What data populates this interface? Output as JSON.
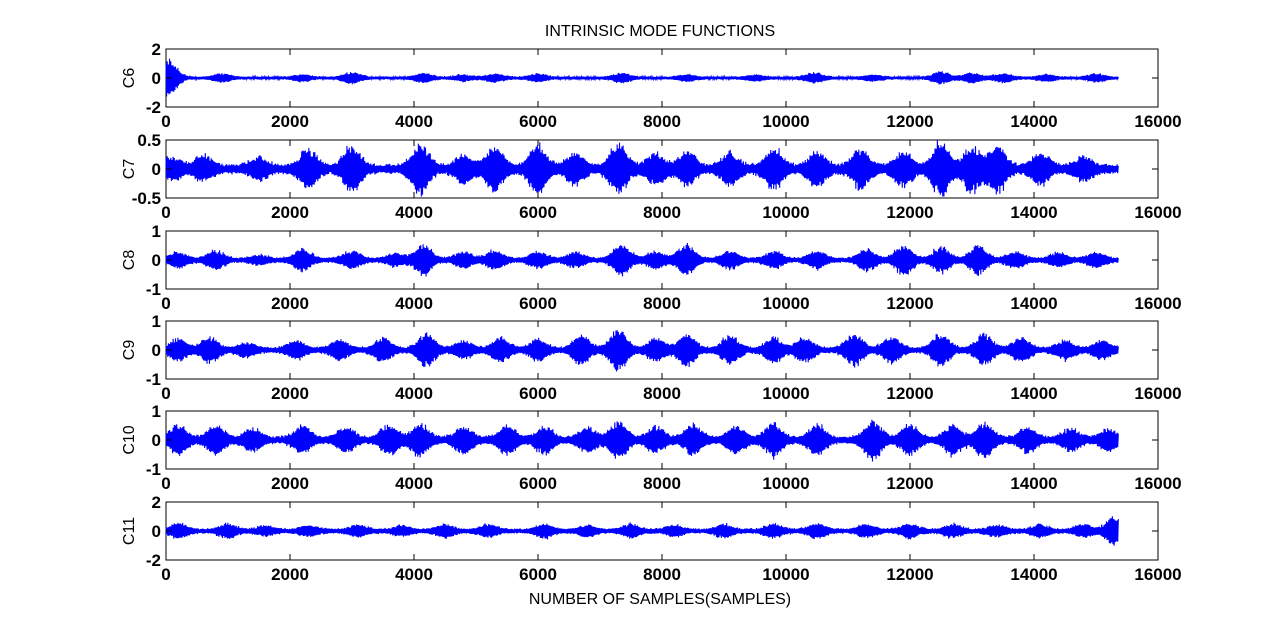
{
  "chart_data": {
    "type": "line",
    "title": "INTRINSIC MODE FUNCTIONS",
    "xlabel": "NUMBER OF SAMPLES(SAMPLES)",
    "xlim": [
      0,
      16000
    ],
    "x_ticks": [
      0,
      2000,
      4000,
      6000,
      8000,
      10000,
      12000,
      14000,
      16000
    ],
    "series_color": "#0000ff",
    "sample_count": 15360,
    "grid": false,
    "legend": "none",
    "subplots": [
      {
        "name": "C6",
        "ylabel": "C6",
        "ylim": [
          -2,
          2
        ],
        "y_ticks": [
          "2",
          "0",
          "-2"
        ],
        "baseline_amplitude": 0.12,
        "bursts": [
          {
            "x": 0,
            "amp": 0.9
          },
          {
            "x": 80,
            "amp": 0.55
          },
          {
            "x": 900,
            "amp": 0.28
          },
          {
            "x": 2200,
            "amp": 0.22
          },
          {
            "x": 3000,
            "amp": 0.38
          },
          {
            "x": 4150,
            "amp": 0.32
          },
          {
            "x": 4800,
            "amp": 0.2
          },
          {
            "x": 5300,
            "amp": 0.28
          },
          {
            "x": 6000,
            "amp": 0.25
          },
          {
            "x": 7350,
            "amp": 0.32
          },
          {
            "x": 8400,
            "amp": 0.22
          },
          {
            "x": 9500,
            "amp": 0.2
          },
          {
            "x": 10450,
            "amp": 0.35
          },
          {
            "x": 11400,
            "amp": 0.2
          },
          {
            "x": 12500,
            "amp": 0.42
          },
          {
            "x": 13000,
            "amp": 0.32
          },
          {
            "x": 13500,
            "amp": 0.3
          },
          {
            "x": 14200,
            "amp": 0.22
          },
          {
            "x": 15000,
            "amp": 0.28
          }
        ]
      },
      {
        "name": "C7",
        "ylabel": "C7",
        "ylim": [
          -0.5,
          0.5
        ],
        "y_ticks": [
          "0.5",
          "0",
          "-0.5"
        ],
        "baseline_amplitude": 0.1,
        "bursts": [
          {
            "x": 100,
            "amp": 0.18
          },
          {
            "x": 600,
            "amp": 0.2
          },
          {
            "x": 1500,
            "amp": 0.16
          },
          {
            "x": 2300,
            "amp": 0.32
          },
          {
            "x": 3000,
            "amp": 0.38
          },
          {
            "x": 4100,
            "amp": 0.45
          },
          {
            "x": 4800,
            "amp": 0.22
          },
          {
            "x": 5300,
            "amp": 0.38
          },
          {
            "x": 6000,
            "amp": 0.42
          },
          {
            "x": 6600,
            "amp": 0.25
          },
          {
            "x": 7300,
            "amp": 0.45
          },
          {
            "x": 7900,
            "amp": 0.25
          },
          {
            "x": 8400,
            "amp": 0.28
          },
          {
            "x": 9100,
            "amp": 0.25
          },
          {
            "x": 9800,
            "amp": 0.35
          },
          {
            "x": 10500,
            "amp": 0.3
          },
          {
            "x": 11200,
            "amp": 0.32
          },
          {
            "x": 11900,
            "amp": 0.3
          },
          {
            "x": 12500,
            "amp": 0.45
          },
          {
            "x": 13000,
            "amp": 0.38
          },
          {
            "x": 13400,
            "amp": 0.42
          },
          {
            "x": 14100,
            "amp": 0.25
          },
          {
            "x": 14800,
            "amp": 0.18
          }
        ]
      },
      {
        "name": "C8",
        "ylabel": "C8",
        "ylim": [
          -1,
          1
        ],
        "y_ticks": [
          "1",
          "0",
          "-1"
        ],
        "baseline_amplitude": 0.1,
        "bursts": [
          {
            "x": 200,
            "amp": 0.25
          },
          {
            "x": 800,
            "amp": 0.32
          },
          {
            "x": 1500,
            "amp": 0.15
          },
          {
            "x": 2200,
            "amp": 0.38
          },
          {
            "x": 3000,
            "amp": 0.3
          },
          {
            "x": 3700,
            "amp": 0.2
          },
          {
            "x": 4150,
            "amp": 0.55
          },
          {
            "x": 4800,
            "amp": 0.28
          },
          {
            "x": 5300,
            "amp": 0.32
          },
          {
            "x": 6000,
            "amp": 0.28
          },
          {
            "x": 6600,
            "amp": 0.25
          },
          {
            "x": 7350,
            "amp": 0.55
          },
          {
            "x": 7900,
            "amp": 0.3
          },
          {
            "x": 8400,
            "amp": 0.55
          },
          {
            "x": 9100,
            "amp": 0.3
          },
          {
            "x": 9800,
            "amp": 0.28
          },
          {
            "x": 10500,
            "amp": 0.3
          },
          {
            "x": 11300,
            "amp": 0.38
          },
          {
            "x": 11900,
            "amp": 0.55
          },
          {
            "x": 12500,
            "amp": 0.45
          },
          {
            "x": 13100,
            "amp": 0.5
          },
          {
            "x": 13700,
            "amp": 0.28
          },
          {
            "x": 14400,
            "amp": 0.22
          },
          {
            "x": 15000,
            "amp": 0.25
          }
        ]
      },
      {
        "name": "C9",
        "ylabel": "C9",
        "ylim": [
          -1,
          1
        ],
        "y_ticks": [
          "1",
          "0",
          "-1"
        ],
        "baseline_amplitude": 0.12,
        "bursts": [
          {
            "x": 200,
            "amp": 0.38
          },
          {
            "x": 700,
            "amp": 0.42
          },
          {
            "x": 1300,
            "amp": 0.22
          },
          {
            "x": 2100,
            "amp": 0.3
          },
          {
            "x": 2800,
            "amp": 0.32
          },
          {
            "x": 3500,
            "amp": 0.4
          },
          {
            "x": 4200,
            "amp": 0.58
          },
          {
            "x": 4800,
            "amp": 0.3
          },
          {
            "x": 5400,
            "amp": 0.42
          },
          {
            "x": 6000,
            "amp": 0.35
          },
          {
            "x": 6700,
            "amp": 0.5
          },
          {
            "x": 7300,
            "amp": 0.72
          },
          {
            "x": 7900,
            "amp": 0.38
          },
          {
            "x": 8400,
            "amp": 0.55
          },
          {
            "x": 9100,
            "amp": 0.48
          },
          {
            "x": 9800,
            "amp": 0.42
          },
          {
            "x": 10300,
            "amp": 0.42
          },
          {
            "x": 11100,
            "amp": 0.55
          },
          {
            "x": 11700,
            "amp": 0.45
          },
          {
            "x": 12500,
            "amp": 0.55
          },
          {
            "x": 13200,
            "amp": 0.52
          },
          {
            "x": 13800,
            "amp": 0.42
          },
          {
            "x": 14500,
            "amp": 0.3
          },
          {
            "x": 15100,
            "amp": 0.3
          }
        ]
      },
      {
        "name": "C10",
        "ylabel": "C10",
        "ylim": [
          -1,
          1
        ],
        "y_ticks": [
          "1",
          "0",
          "-1"
        ],
        "baseline_amplitude": 0.15,
        "bursts": [
          {
            "x": 200,
            "amp": 0.5
          },
          {
            "x": 800,
            "amp": 0.45
          },
          {
            "x": 1400,
            "amp": 0.35
          },
          {
            "x": 2200,
            "amp": 0.45
          },
          {
            "x": 2900,
            "amp": 0.42
          },
          {
            "x": 3600,
            "amp": 0.5
          },
          {
            "x": 4100,
            "amp": 0.55
          },
          {
            "x": 4800,
            "amp": 0.45
          },
          {
            "x": 5500,
            "amp": 0.5
          },
          {
            "x": 6100,
            "amp": 0.45
          },
          {
            "x": 6800,
            "amp": 0.4
          },
          {
            "x": 7300,
            "amp": 0.62
          },
          {
            "x": 7900,
            "amp": 0.42
          },
          {
            "x": 8500,
            "amp": 0.5
          },
          {
            "x": 9200,
            "amp": 0.45
          },
          {
            "x": 9800,
            "amp": 0.55
          },
          {
            "x": 10500,
            "amp": 0.5
          },
          {
            "x": 11400,
            "amp": 0.7
          },
          {
            "x": 12000,
            "amp": 0.52
          },
          {
            "x": 12700,
            "amp": 0.5
          },
          {
            "x": 13200,
            "amp": 0.6
          },
          {
            "x": 13900,
            "amp": 0.42
          },
          {
            "x": 14600,
            "amp": 0.35
          },
          {
            "x": 15200,
            "amp": 0.35
          }
        ]
      },
      {
        "name": "C11",
        "ylabel": "C11",
        "ylim": [
          -2,
          2
        ],
        "y_ticks": [
          "2",
          "0",
          "-2"
        ],
        "baseline_amplitude": 0.2,
        "bursts": [
          {
            "x": 200,
            "amp": 0.5
          },
          {
            "x": 1000,
            "amp": 0.45
          },
          {
            "x": 1600,
            "amp": 0.3
          },
          {
            "x": 2300,
            "amp": 0.35
          },
          {
            "x": 3100,
            "amp": 0.35
          },
          {
            "x": 3800,
            "amp": 0.3
          },
          {
            "x": 4500,
            "amp": 0.4
          },
          {
            "x": 5200,
            "amp": 0.4
          },
          {
            "x": 6100,
            "amp": 0.45
          },
          {
            "x": 6800,
            "amp": 0.35
          },
          {
            "x": 7500,
            "amp": 0.42
          },
          {
            "x": 8200,
            "amp": 0.35
          },
          {
            "x": 9000,
            "amp": 0.42
          },
          {
            "x": 9800,
            "amp": 0.42
          },
          {
            "x": 10500,
            "amp": 0.45
          },
          {
            "x": 11300,
            "amp": 0.42
          },
          {
            "x": 12000,
            "amp": 0.45
          },
          {
            "x": 12700,
            "amp": 0.42
          },
          {
            "x": 13400,
            "amp": 0.35
          },
          {
            "x": 14100,
            "amp": 0.38
          },
          {
            "x": 14800,
            "amp": 0.4
          },
          {
            "x": 15300,
            "amp": 1.0
          }
        ]
      }
    ]
  }
}
